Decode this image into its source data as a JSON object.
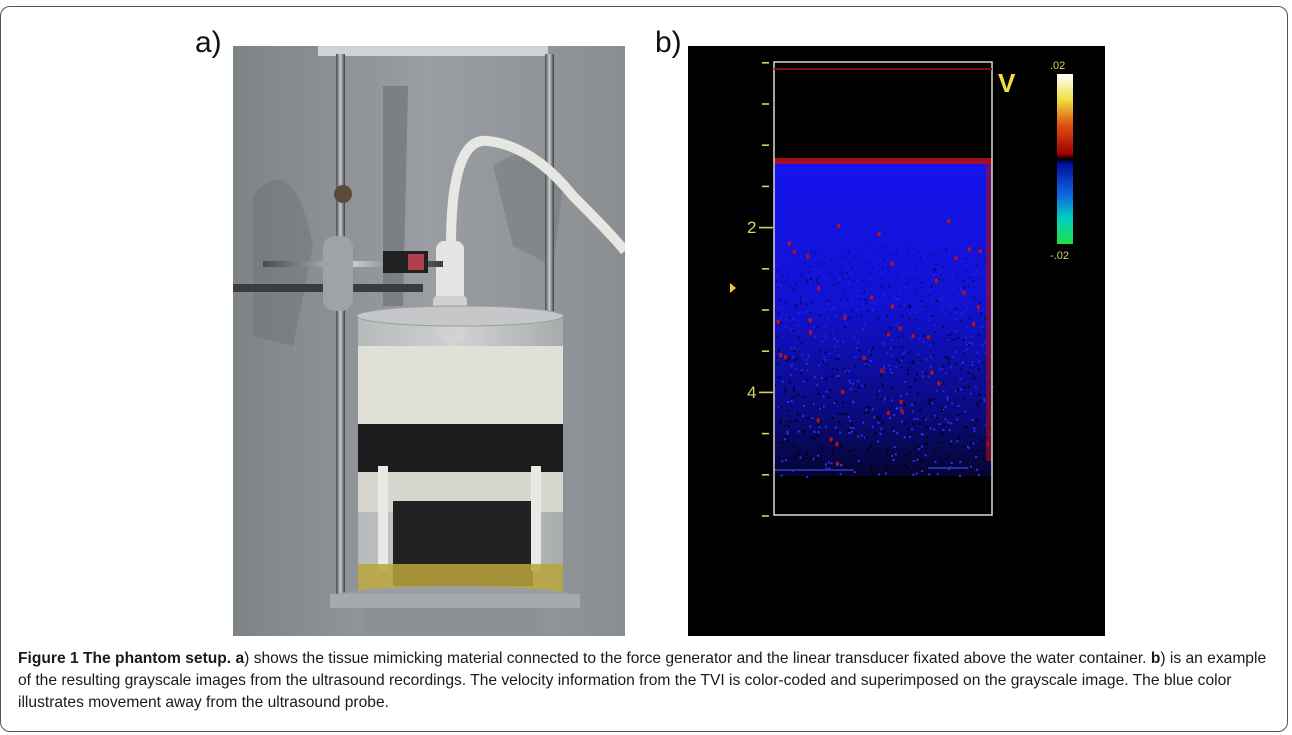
{
  "panels": {
    "a_label": "a)",
    "b_label": "b)"
  },
  "ultrasound": {
    "mode_label": "V",
    "scale_top": ".02",
    "scale_bottom": "-.02",
    "depth_labels": [
      "2",
      "4"
    ]
  },
  "caption": {
    "figure_label": "Figure 1",
    "title": "The phantom setup.",
    "a_ref": "a",
    "a_text": ") shows the tissue mimicking material connected to the force generator and the linear transducer fixated above the water container.",
    "b_ref": "b",
    "b_text": ") is an example of the resulting grayscale images from the ultrasound recordings. The velocity information from the TVI is color-coded and superimposed on the grayscale image. The blue color illustrates movement away from the ultrasound probe."
  },
  "colors": {
    "velocity_away": "#1010e0",
    "velocity_toward": "#e01010",
    "scale_label": "#d8d060"
  }
}
